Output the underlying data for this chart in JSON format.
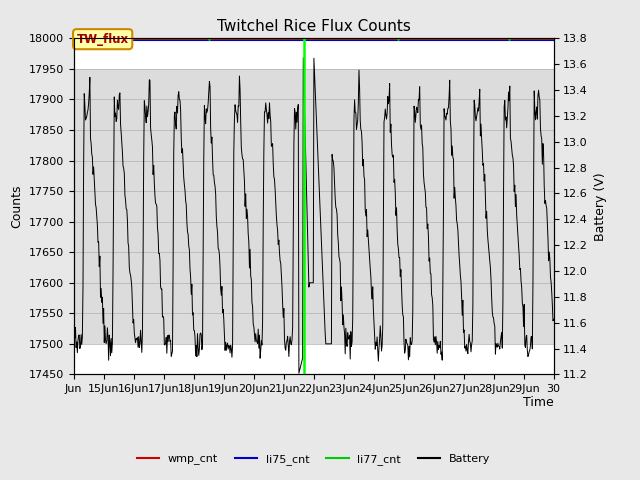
{
  "title": "Twitchel Rice Flux Counts",
  "ylabel_left": "Counts",
  "ylabel_right": "Battery (V)",
  "xlabel": "Time",
  "ylim_left": [
    17450,
    18000
  ],
  "ylim_right": [
    11.2,
    13.8
  ],
  "yticks_left": [
    17450,
    17500,
    17550,
    17600,
    17650,
    17700,
    17750,
    17800,
    17850,
    17900,
    17950,
    18000
  ],
  "yticks_right": [
    11.2,
    11.4,
    11.6,
    11.8,
    12.0,
    12.2,
    12.4,
    12.6,
    12.8,
    13.0,
    13.2,
    13.4,
    13.6,
    13.8
  ],
  "bg_color": "#e8e8e8",
  "plot_bg_color": "#ffffff",
  "shaded_region": [
    17500,
    17950
  ],
  "shaded_color": "#dcdcdc",
  "li77_cnt_color": "#00cc00",
  "li77_cnt_value": 18000,
  "wmp_cnt_color": "#cc0000",
  "li75_cnt_color": "#0000cc",
  "battery_color": "#000000",
  "vertical_line_x": 21.67,
  "vertical_line_color": "#00ff00",
  "box_label": "TW_flux",
  "box_bg": "#ffffaa",
  "box_border": "#cc8800",
  "title_fontsize": 11,
  "axis_fontsize": 9,
  "tick_fontsize": 8,
  "legend_fontsize": 8,
  "xtick_positions": [
    14,
    15,
    16,
    17,
    18,
    19,
    20,
    21,
    22,
    23,
    24,
    25,
    26,
    27,
    28,
    29,
    30
  ],
  "xtick_labels": [
    "Jun",
    "15Jun",
    "16Jun",
    "17Jun",
    "18Jun",
    "19Jun",
    "20Jun",
    "21Jun",
    "22Jun",
    "23Jun",
    "24Jun",
    "25Jun",
    "26Jun",
    "27Jun",
    "28Jun",
    "29Jun",
    "30"
  ],
  "li77_dot_x": [
    15.3,
    18.5,
    21.67,
    24.8,
    28.5
  ],
  "li77_dot_y": [
    18000,
    18000,
    18000,
    18000,
    18000
  ]
}
